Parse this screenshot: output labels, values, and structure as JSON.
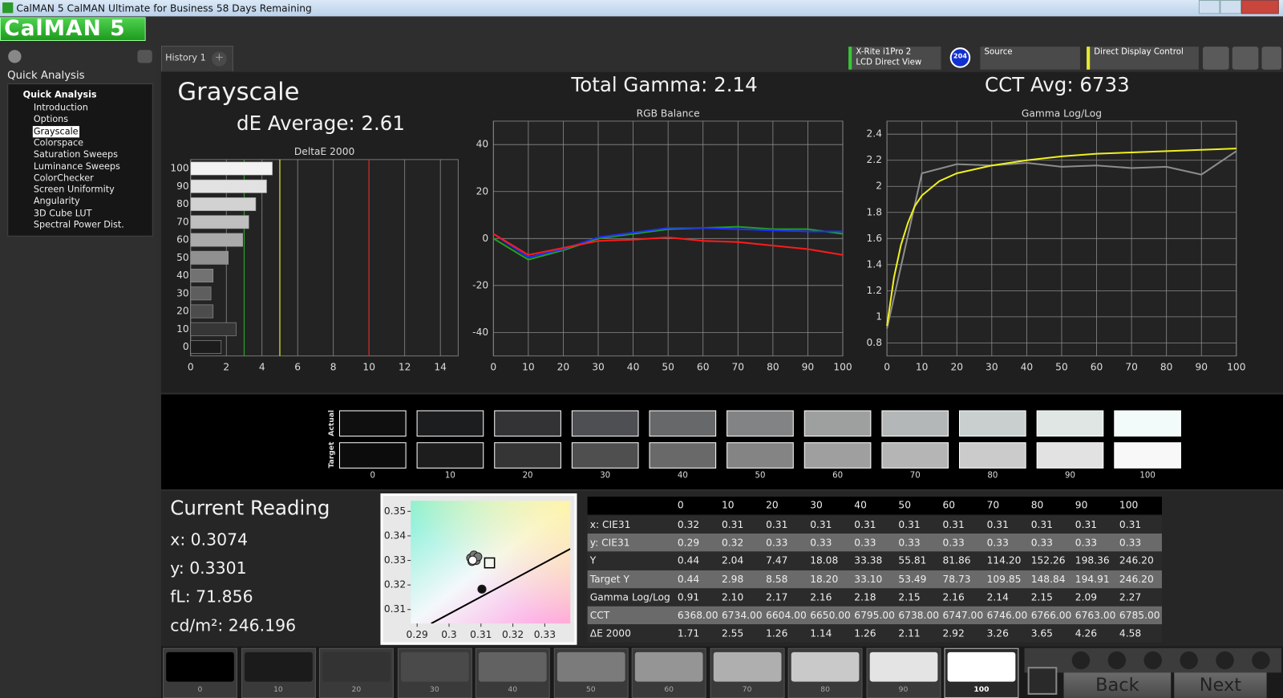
{
  "window": {
    "title": "CalMAN 5 CalMAN Ultimate for Business 58 Days Remaining"
  },
  "logo": "CalMAN 5",
  "sidebar": {
    "heading": "Quick Analysis",
    "tree_root": "Quick Analysis",
    "items": [
      "Introduction",
      "Options",
      "Grayscale",
      "Colorspace",
      "Saturation Sweeps",
      "Luminance Sweeps",
      "ColorChecker",
      "Screen Uniformity",
      "Angularity",
      "3D Cube LUT",
      "Spectral Power Dist."
    ],
    "selected_index": 2
  },
  "tabs": {
    "items": [
      "History 1"
    ],
    "add": "+"
  },
  "toolbar": {
    "meter": "X-Rite i1Pro 2",
    "meter_mode": "LCD Direct View",
    "badge": "204",
    "source": "Source",
    "display_control": "Direct Display Control"
  },
  "summary": {
    "title": "Grayscale",
    "de_average": "dE Average: 2.61",
    "total_gamma": "Total Gamma: 2.14",
    "cct_average": "CCT Avg: 6733"
  },
  "chart_data": [
    {
      "type": "bar",
      "orientation": "horizontal",
      "title": "DeltaE 2000",
      "categories": [
        "100",
        "90",
        "80",
        "70",
        "60",
        "50",
        "40",
        "30",
        "20",
        "10",
        "0"
      ],
      "values": [
        4.58,
        4.26,
        3.65,
        3.26,
        2.92,
        2.11,
        1.26,
        1.14,
        1.26,
        2.55,
        1.71
      ],
      "colors": [
        "#f2f2f2",
        "#e2e2e2",
        "#d2d2d2",
        "#bfbfbf",
        "#aaaaaa",
        "#909090",
        "#727272",
        "#5e5e5e",
        "#4c4c4c",
        "#363636",
        "#1c1c1c"
      ],
      "xlim": [
        0,
        15
      ],
      "xticks": [
        0,
        2,
        4,
        6,
        8,
        10,
        12,
        14
      ],
      "reference_lines": [
        {
          "value": 3,
          "color": "#2f9e2f"
        },
        {
          "value": 5,
          "color": "#e8e830"
        },
        {
          "value": 10,
          "color": "#e02020"
        }
      ],
      "grid": true
    },
    {
      "type": "line",
      "title": "RGB Balance",
      "x": [
        0,
        10,
        20,
        30,
        40,
        50,
        60,
        70,
        80,
        90,
        100
      ],
      "series": [
        {
          "color": "#20a020",
          "values": [
            0,
            -9,
            -5,
            0,
            2,
            4,
            4.5,
            5,
            4,
            4,
            2
          ]
        },
        {
          "color": "#2030ff",
          "values": [
            2,
            -8,
            -4.5,
            0.5,
            2.5,
            4.5,
            4.5,
            4,
            3.5,
            3,
            3
          ]
        },
        {
          "color": "#ff1a1a",
          "values": [
            2,
            -7,
            -4,
            -1,
            -0.5,
            0.5,
            -1,
            -1.5,
            -3,
            -4.5,
            -7
          ]
        }
      ],
      "xlim": [
        0,
        100
      ],
      "xticks": [
        0,
        10,
        20,
        30,
        40,
        50,
        60,
        70,
        80,
        90,
        100
      ],
      "ylim": [
        -50,
        50
      ],
      "yticks": [
        -40,
        -20,
        0,
        20,
        40
      ],
      "grid": true
    },
    {
      "type": "line",
      "title": "Gamma Log/Log",
      "series": [
        {
          "color": "#8c8c8c",
          "x": [
            0,
            10,
            20,
            30,
            40,
            50,
            60,
            70,
            80,
            90,
            100
          ],
          "values": [
            0.91,
            2.1,
            2.17,
            2.16,
            2.18,
            2.15,
            2.16,
            2.14,
            2.15,
            2.09,
            2.27
          ]
        },
        {
          "color": "#f0f020",
          "x": [
            0,
            2,
            4,
            6,
            8,
            10,
            15,
            20,
            30,
            40,
            50,
            60,
            70,
            80,
            90,
            100
          ],
          "values": [
            0.93,
            1.3,
            1.55,
            1.72,
            1.85,
            1.93,
            2.04,
            2.1,
            2.16,
            2.2,
            2.23,
            2.25,
            2.26,
            2.27,
            2.28,
            2.29
          ]
        }
      ],
      "xlim": [
        0,
        100
      ],
      "xticks": [
        0,
        10,
        20,
        30,
        40,
        50,
        60,
        70,
        80,
        90,
        100
      ],
      "ylim": [
        0.7,
        2.5
      ],
      "yticks": [
        0.8,
        1,
        1.2,
        1.4,
        1.6,
        1.8,
        2,
        2.2,
        2.4
      ],
      "grid": true
    },
    {
      "type": "scatter",
      "series": [
        {
          "marker": "line",
          "color": "#000000",
          "x": [
            0.2944,
            0.338
          ],
          "values": [
            0.3043,
            0.3347
          ]
        },
        {
          "marker": "circle",
          "color": "#7a7a7a",
          "x": [
            0.3068,
            0.3078,
            0.3085,
            0.309,
            0.3072
          ],
          "values": [
            0.331,
            0.3322,
            0.33,
            0.3315,
            0.3296
          ]
        },
        {
          "marker": "circle",
          "color": "#111111",
          "x": [
            0.3103
          ],
          "values": [
            0.3183
          ]
        },
        {
          "marker": "square",
          "color": "#ffffff",
          "x": [
            0.3127
          ],
          "values": [
            0.329
          ]
        },
        {
          "marker": "circle",
          "color": "#ffffff",
          "x": [
            0.3074
          ],
          "values": [
            0.3301
          ]
        }
      ],
      "xlim": [
        0.288,
        0.338
      ],
      "xticks": [
        0.29,
        0.3,
        0.31,
        0.32,
        0.33
      ],
      "ylim": [
        0.3043,
        0.3543
      ],
      "yticks": [
        0.31,
        0.32,
        0.33,
        0.34,
        0.35
      ]
    }
  ],
  "swatches": {
    "row_labels": [
      "Actual",
      "Target"
    ],
    "labels": [
      "0",
      "10",
      "20",
      "30",
      "40",
      "50",
      "60",
      "70",
      "80",
      "90",
      "100"
    ],
    "actual_colors": [
      "#0f0f10",
      "#1c1d1f",
      "#333335",
      "#4e4f52",
      "#67686a",
      "#828384",
      "#9ea0a0",
      "#b4b7b8",
      "#c9cfcf",
      "#dfe6e4",
      "#f2fbf9"
    ],
    "target_colors": [
      "#0c0c0c",
      "#1d1d1d",
      "#353535",
      "#4f4f4f",
      "#696969",
      "#848484",
      "#9f9f9f",
      "#b5b5b5",
      "#cbcbcb",
      "#e2e2e2",
      "#f8f8f8"
    ]
  },
  "current_reading": {
    "title": "Current Reading",
    "lines": [
      "x: 0.3074",
      "y: 0.3301",
      "fL: 71.856",
      "cd/m²: 246.196"
    ]
  },
  "table": {
    "columns": [
      "0",
      "10",
      "20",
      "30",
      "40",
      "50",
      "60",
      "70",
      "80",
      "90",
      "100"
    ],
    "rows": [
      {
        "label": "x: CIE31",
        "cells": [
          "0.32",
          "0.31",
          "0.31",
          "0.31",
          "0.31",
          "0.31",
          "0.31",
          "0.31",
          "0.31",
          "0.31",
          "0.31"
        ]
      },
      {
        "label": "y: CIE31",
        "cells": [
          "0.29",
          "0.32",
          "0.33",
          "0.33",
          "0.33",
          "0.33",
          "0.33",
          "0.33",
          "0.33",
          "0.33",
          "0.33"
        ]
      },
      {
        "label": "Y",
        "cells": [
          "0.44",
          "2.04",
          "7.47",
          "18.08",
          "33.38",
          "55.81",
          "81.86",
          "114.20",
          "152.26",
          "198.36",
          "246.20"
        ]
      },
      {
        "label": "Target Y",
        "cells": [
          "0.44",
          "2.98",
          "8.58",
          "18.20",
          "33.10",
          "53.49",
          "78.73",
          "109.85",
          "148.84",
          "194.91",
          "246.20"
        ]
      },
      {
        "label": "Gamma Log/Log",
        "cells": [
          "0.91",
          "2.10",
          "2.17",
          "2.16",
          "2.18",
          "2.15",
          "2.16",
          "2.14",
          "2.15",
          "2.09",
          "2.27"
        ]
      },
      {
        "label": "CCT",
        "cells": [
          "6368.00",
          "6734.00",
          "6604.00",
          "6650.00",
          "6795.00",
          "6738.00",
          "6747.00",
          "6746.00",
          "6766.00",
          "6763.00",
          "6785.00"
        ]
      },
      {
        "label": "ΔE 2000",
        "cells": [
          "1.71",
          "2.55",
          "1.26",
          "1.14",
          "1.26",
          "2.11",
          "2.92",
          "3.26",
          "3.65",
          "4.26",
          "4.58"
        ]
      }
    ]
  },
  "patch_bar": {
    "labels": [
      "0",
      "10",
      "20",
      "30",
      "40",
      "50",
      "60",
      "70",
      "80",
      "90",
      "100"
    ],
    "colors": [
      "#000000",
      "#1b1b1b",
      "#333333",
      "#4a4a4a",
      "#626262",
      "#7b7b7b",
      "#959595",
      "#afafaf",
      "#c9c9c9",
      "#e4e4e4",
      "#ffffff"
    ],
    "selected_index": 10,
    "back": "Back",
    "next": "Next"
  }
}
